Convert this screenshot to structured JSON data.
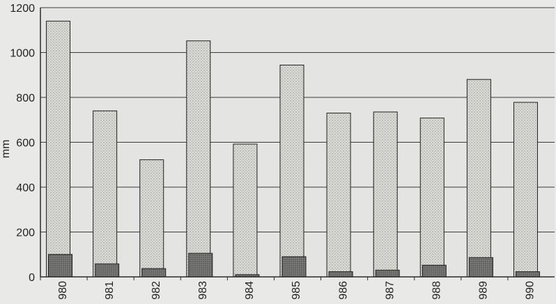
{
  "chart_data": {
    "type": "bar",
    "ylabel": "mm",
    "xlabel": "",
    "title": "",
    "ylim": [
      0,
      1200
    ],
    "yticks": [
      "0",
      "200",
      "400",
      "600",
      "800",
      "1000",
      "1200"
    ],
    "categories": [
      "980",
      "981",
      "982",
      "983",
      "984",
      "985",
      "986",
      "987",
      "988",
      "989",
      "990"
    ],
    "grid": "horizontal",
    "series": [
      {
        "values": [
          1140,
          740,
          522,
          1052,
          592,
          944,
          730,
          735,
          708,
          880,
          778
        ],
        "color": "#d4d4d1",
        "pattern": "light-stipple"
      },
      {
        "values": [
          100,
          58,
          37,
          105,
          10,
          90,
          23,
          30,
          52,
          86,
          23
        ],
        "color": "#6e6e6c",
        "pattern": "dark-stipple"
      }
    ]
  }
}
